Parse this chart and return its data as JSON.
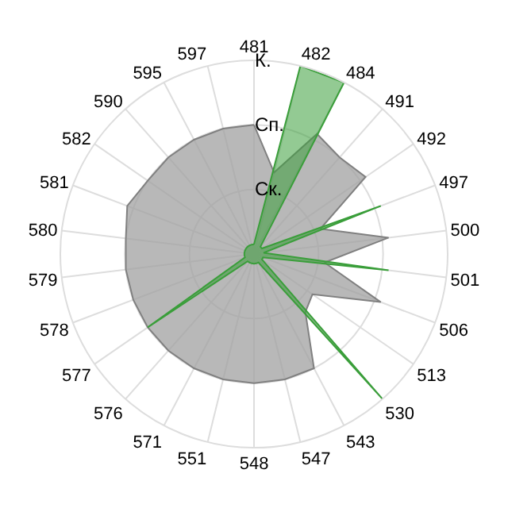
{
  "chart_data": {
    "type": "radar",
    "categories": [
      "481",
      "482",
      "484",
      "491",
      "492",
      "497",
      "500",
      "501",
      "506",
      "513",
      "530",
      "543",
      "547",
      "548",
      "551",
      "571",
      "576",
      "577",
      "578",
      "579",
      "580",
      "581",
      "582",
      "590",
      "595",
      "597"
    ],
    "series": [
      {
        "color": "#808080",
        "values": [
          2.0,
          1.3,
          2.1,
          2.0,
          2.1,
          1.1,
          2.1,
          1.1,
          2.1,
          1.1,
          1.2,
          2.0,
          2.0,
          2.0,
          2.0,
          2.0,
          2.0,
          2.0,
          2.0,
          2.0,
          2.0,
          2.1,
          2.0,
          2.0,
          2.0,
          2.0
        ]
      },
      {
        "color": "#3a9e3a",
        "values": [
          0.15,
          3.0,
          3.0,
          0.15,
          0.15,
          2.1,
          0.15,
          2.1,
          0.15,
          0.15,
          3.0,
          0.15,
          0.15,
          0.15,
          0.15,
          0.15,
          0.15,
          2.0,
          0.15,
          0.15,
          0.15,
          0.15,
          0.15,
          0.15,
          0.15,
          0.15
        ]
      }
    ],
    "ylim": [
      0,
      3
    ],
    "yticks": [
      {
        "value": 1,
        "label": "Ск."
      },
      {
        "value": 2,
        "label": "Сп."
      },
      {
        "value": 3,
        "label": "К."
      }
    ],
    "grid": true,
    "marker": "none"
  }
}
